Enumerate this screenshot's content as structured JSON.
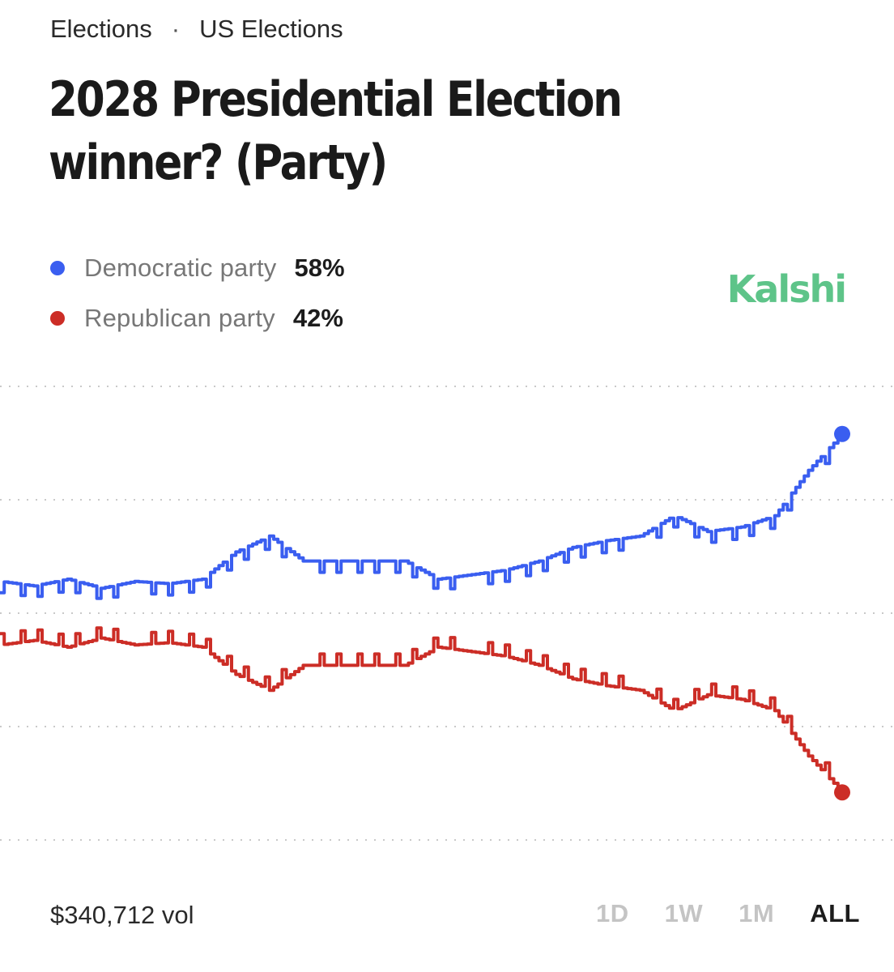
{
  "breadcrumb": {
    "category": "Elections",
    "separator": "·",
    "subcategory": "US Elections"
  },
  "title": "2028 Presidential Election winner? (Party)",
  "brand": {
    "name": "Kalshi",
    "color": "#5ec489"
  },
  "legend": [
    {
      "name": "Democratic party",
      "value": "58%",
      "color": "#3a5ef0"
    },
    {
      "name": "Republican party",
      "value": "42%",
      "color": "#cc2d26"
    }
  ],
  "volume": "$340,712 vol",
  "ranges": [
    {
      "label": "1D",
      "active": false
    },
    {
      "label": "1W",
      "active": false
    },
    {
      "label": "1M",
      "active": false
    },
    {
      "label": "ALL",
      "active": true
    }
  ],
  "chart_data": {
    "type": "line",
    "title": "2028 Presidential Election winner? (Party)",
    "xlabel": "",
    "ylabel": "",
    "ylim": [
      40,
      60
    ],
    "grid": true,
    "x": [
      0,
      4,
      8,
      12,
      16,
      20,
      24,
      28,
      32,
      36,
      40,
      44,
      48,
      52,
      56,
      60,
      64,
      68,
      72,
      76,
      80,
      84,
      88,
      92,
      96,
      100
    ],
    "series": [
      {
        "name": "Democratic party",
        "color": "#3a5ef0",
        "values": [
          51.4,
          51.2,
          51.5,
          51.1,
          51.4,
          51.3,
          51.5,
          52.7,
          53.4,
          52.3,
          52.3,
          52.3,
          52.3,
          51.5,
          51.7,
          51.9,
          52.3,
          52.9,
          53.2,
          53.4,
          54.3,
          53.6,
          53.8,
          54.3,
          56.3,
          57.9
        ]
      },
      {
        "name": "Republican party",
        "color": "#cc2d26",
        "values": [
          48.6,
          48.8,
          48.5,
          48.9,
          48.6,
          48.7,
          48.5,
          47.3,
          46.6,
          47.7,
          47.7,
          47.7,
          47.7,
          48.5,
          48.3,
          48.1,
          47.7,
          47.1,
          46.8,
          46.6,
          45.7,
          46.4,
          46.2,
          45.7,
          43.7,
          42.1
        ]
      }
    ]
  }
}
